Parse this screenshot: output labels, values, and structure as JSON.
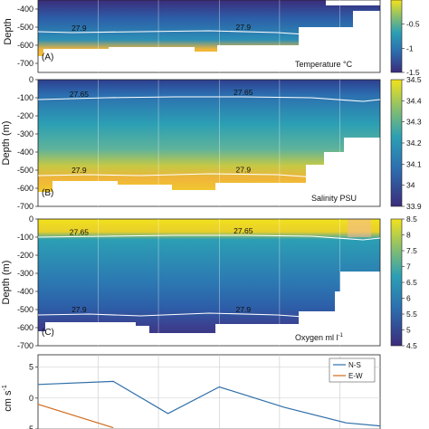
{
  "colors": {
    "low": "#3b2c7a",
    "mid": "#2c8fb6",
    "high": "#f2e21c",
    "warm": "#f0b43a",
    "ns_line": "#2e6fa8",
    "ew_line": "#d06a1c",
    "contour": "#ffffff",
    "mask": "#ffffff"
  },
  "chart_data": [
    {
      "type": "heatmap",
      "panel_label": "(A)",
      "ylabel": "Depth",
      "quantity_label": "Temperature",
      "unit_label": "°C",
      "ylim": [
        -750,
        -350
      ],
      "yticks": [
        -400,
        -500,
        -600,
        -700
      ],
      "colorbar_ticks": [
        -0.5,
        -1,
        -1.5
      ],
      "colorbar_range": [
        -1.5,
        0
      ],
      "contours": [
        {
          "label": "27.9",
          "x": [
            0.0,
            0.1,
            0.3,
            0.5,
            0.7,
            0.9
          ],
          "y": [
            -525,
            -530,
            -525,
            -520,
            -530,
            -555
          ]
        }
      ]
    },
    {
      "type": "heatmap",
      "panel_label": "(B)",
      "ylabel": "Depth (m)",
      "quantity_label": "Salinity",
      "unit_label": "PSU",
      "ylim": [
        -700,
        0
      ],
      "yticks": [
        0,
        -100,
        -200,
        -300,
        -400,
        -500,
        -600,
        -700
      ],
      "colorbar_ticks": [
        34.5,
        34.4,
        34.3,
        34.2,
        34.1,
        34,
        33.9
      ],
      "colorbar_range": [
        33.9,
        34.5
      ],
      "contours": [
        {
          "label": "27.65",
          "x": [
            0.0,
            0.2,
            0.4,
            0.6,
            0.8,
            0.95,
            1.0
          ],
          "y": [
            -110,
            -100,
            -95,
            -95,
            -100,
            -120,
            -110
          ]
        },
        {
          "label": "27.9",
          "x": [
            0.0,
            0.15,
            0.3,
            0.5,
            0.7,
            0.85
          ],
          "y": [
            -530,
            -525,
            -530,
            -520,
            -525,
            -545
          ]
        }
      ]
    },
    {
      "type": "heatmap",
      "panel_label": "(C)",
      "ylabel": "Depth (m)",
      "quantity_label": "Oxygen",
      "unit_label": "ml l",
      "unit_exponent": "-1",
      "ylim": [
        -700,
        0
      ],
      "yticks": [
        0,
        -100,
        -200,
        -300,
        -400,
        -500,
        -600,
        -700
      ],
      "colorbar_ticks": [
        8.5,
        8,
        7.5,
        7,
        6.5,
        6,
        5.5,
        5,
        4.5
      ],
      "colorbar_range": [
        4.5,
        8.5
      ],
      "contours": [
        {
          "label": "27.65",
          "x": [
            0.0,
            0.2,
            0.4,
            0.6,
            0.8,
            0.95,
            1.0
          ],
          "y": [
            -100,
            -95,
            -90,
            -90,
            -95,
            -115,
            -105
          ]
        },
        {
          "label": "27.9",
          "x": [
            0.0,
            0.15,
            0.3,
            0.5,
            0.7,
            0.85
          ],
          "y": [
            -530,
            -525,
            -535,
            -520,
            -530,
            -550
          ]
        }
      ]
    },
    {
      "type": "line",
      "ylabel": "cm s",
      "ylabel_exponent": "-1",
      "ylim": [
        -5,
        7
      ],
      "yticks": [
        5,
        0,
        -5
      ],
      "legend_position": "top-right",
      "series": [
        {
          "name": "N-S",
          "x": [
            0.0,
            0.22,
            0.38,
            0.53,
            0.72,
            0.9,
            1.0
          ],
          "values": [
            2.2,
            2.7,
            -2.5,
            1.8,
            -1.5,
            -4.0,
            -4.5
          ]
        },
        {
          "name": "E-W",
          "x": [
            0.0,
            0.22
          ],
          "values": [
            -1.0,
            -4.8
          ]
        }
      ]
    }
  ]
}
